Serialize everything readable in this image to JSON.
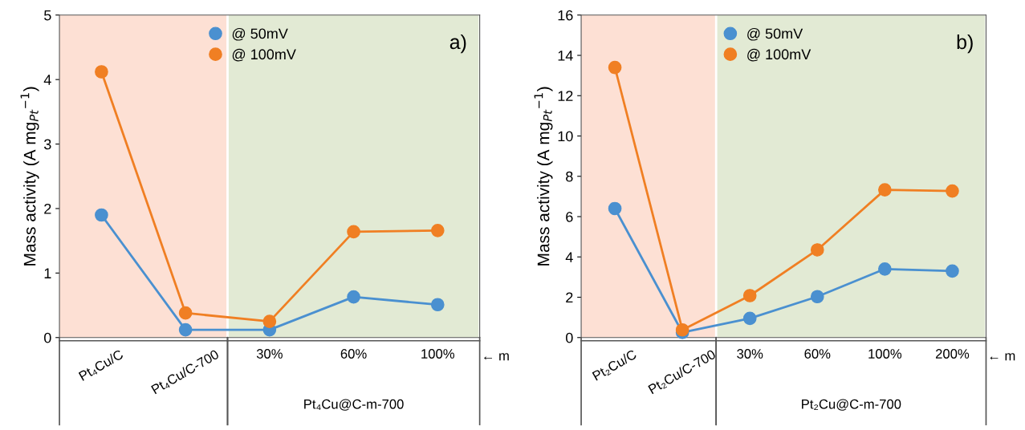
{
  "chart_data": [
    {
      "type": "line",
      "title": "a)",
      "ylabel": "Mass activity (A mg$_{Pt}$$^{−1}$)",
      "categories": [
        "Pt₄Cu/C",
        "Pt₄Cu/C-700",
        "30%",
        "60%",
        "100%"
      ],
      "series": [
        {
          "name": "@ 50mV",
          "color": "#4a90d0",
          "values": [
            1.9,
            0.12,
            0.12,
            0.63,
            0.51
          ]
        },
        {
          "name": "@ 100mV",
          "color": "#f07f23",
          "values": [
            4.12,
            0.38,
            0.25,
            1.64,
            1.66
          ]
        }
      ],
      "ylim": [
        0,
        5
      ],
      "yticks": [
        0,
        1,
        2,
        3,
        4,
        5
      ],
      "grid": false,
      "legend": "top",
      "marker": "circle",
      "line_style": "solid",
      "bands": [
        {
          "axis": "x",
          "from": "Pt₄Cu/C",
          "to": "Pt₄Cu/C-700",
          "color": "#fde0d4"
        },
        {
          "axis": "x",
          "from": "30%",
          "to": "100%",
          "color": "#e2ead4"
        }
      ],
      "annotations": [
        "Pt₄Cu@C-m-700",
        "← m"
      ]
    },
    {
      "type": "line",
      "title": "b)",
      "ylabel": "Mass activity (A mg$_{Pt}$$^{−1}$)",
      "categories": [
        "Pt₂Cu/C",
        "Pt₂Cu/C-700",
        "30%",
        "60%",
        "100%",
        "200%"
      ],
      "series": [
        {
          "name": "@ 50mV",
          "color": "#4a90d0",
          "values": [
            6.4,
            0.25,
            0.95,
            2.03,
            3.4,
            3.3
          ]
        },
        {
          "name": "@ 100mV",
          "color": "#f07f23",
          "values": [
            13.4,
            0.38,
            2.08,
            4.35,
            7.33,
            7.27
          ]
        }
      ],
      "ylim": [
        0,
        16
      ],
      "yticks": [
        0,
        2,
        4,
        6,
        8,
        10,
        12,
        14,
        16
      ],
      "grid": false,
      "legend": "top",
      "marker": "circle",
      "line_style": "solid",
      "bands": [
        {
          "axis": "x",
          "from": "Pt₂Cu/C",
          "to": "Pt₂Cu/C-700",
          "color": "#fde0d4"
        },
        {
          "axis": "x",
          "from": "30%",
          "to": "200%",
          "color": "#e2ead4"
        }
      ],
      "annotations": [
        "Pt₂Cu@C-m-700",
        "← m"
      ]
    }
  ]
}
